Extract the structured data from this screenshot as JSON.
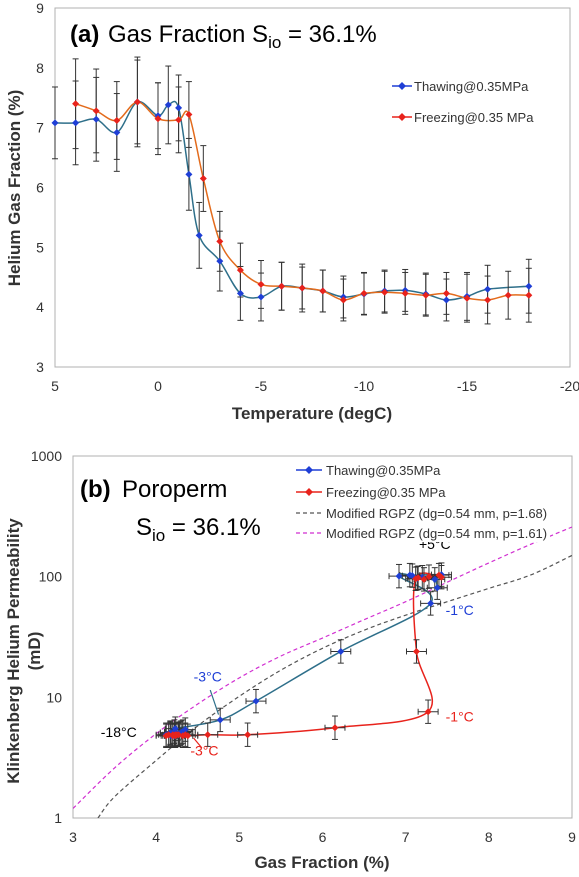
{
  "colors": {
    "thawing": "#1f3fd6",
    "freezing": "#e8231c",
    "thawing_line": "#2e6f8a",
    "freezing_line": "#e36b1c",
    "rgpz_168": "#555555",
    "rgpz_161": "#d12fd1",
    "errorbar": "#333333"
  },
  "chart_data": [
    {
      "panel": "a",
      "type": "line",
      "title_prefix": "(a)",
      "title_main": "Gas Fraction S",
      "title_sub": "io",
      "title_suffix": " = 36.1%",
      "xlabel": "Temperature (degC)",
      "ylabel": "Helium Gas Fraction (%)",
      "xlim": [
        5,
        -20
      ],
      "ylim": [
        3,
        9
      ],
      "xticks": [
        5,
        0,
        -5,
        -10,
        -15,
        -20
      ],
      "xtick_labels": [
        "5",
        "0",
        "-5",
        "-10",
        "-15",
        "-20"
      ],
      "yticks": [
        3,
        4,
        5,
        6,
        7,
        8,
        9
      ],
      "ytick_labels": [
        "3",
        "4",
        "5",
        "6",
        "7",
        "8",
        "9"
      ],
      "grid": "none",
      "legend_placement": "top-right",
      "series": [
        {
          "name": "Thawing@0.35MPa",
          "marker": "diamond",
          "x": [
            5,
            4,
            3,
            2,
            1,
            0,
            -0.5,
            -1,
            -1.5,
            -2,
            -3,
            -4,
            -5,
            -6,
            -7,
            -8,
            -9,
            -10,
            -11,
            -12,
            -13,
            -14,
            -15,
            -16,
            -18
          ],
          "y": [
            7.08,
            7.08,
            7.14,
            6.92,
            7.43,
            7.2,
            7.38,
            7.33,
            6.22,
            5.2,
            4.77,
            4.23,
            4.17,
            4.35,
            4.32,
            4.27,
            4.17,
            4.22,
            4.27,
            4.28,
            4.22,
            4.12,
            4.18,
            4.3,
            4.35
          ],
          "err": [
            0.6,
            0.7,
            0.7,
            0.65,
            0.7,
            0.55,
            0.65,
            0.55,
            0.6,
            0.55,
            0.5,
            0.45,
            0.4,
            0.4,
            0.4,
            0.35,
            0.35,
            0.35,
            0.35,
            0.35,
            0.35,
            0.35,
            0.4,
            0.4,
            0.45
          ]
        },
        {
          "name": "Freezing@0.35 MPa",
          "marker": "diamond",
          "x": [
            4,
            3,
            2,
            1,
            0,
            -1,
            -1.5,
            -2.2,
            -3,
            -4,
            -5,
            -6,
            -7,
            -8,
            -9,
            -10,
            -11,
            -12,
            -13,
            -14,
            -15,
            -16,
            -17,
            -18
          ],
          "y": [
            7.4,
            7.28,
            7.12,
            7.43,
            7.15,
            7.13,
            7.22,
            6.15,
            5.1,
            4.62,
            4.38,
            4.35,
            4.32,
            4.27,
            4.12,
            4.23,
            4.25,
            4.23,
            4.2,
            4.23,
            4.15,
            4.12,
            4.2,
            4.2
          ],
          "err": [
            0.75,
            0.7,
            0.65,
            0.75,
            0.6,
            0.55,
            0.55,
            0.55,
            0.5,
            0.45,
            0.4,
            0.4,
            0.35,
            0.35,
            0.35,
            0.35,
            0.35,
            0.35,
            0.35,
            0.35,
            0.4,
            0.4,
            0.4,
            0.45
          ]
        }
      ]
    },
    {
      "panel": "b",
      "type": "scatter",
      "title_prefix": "(b)",
      "title_main": "Poroperm",
      "subtitle_main": "S",
      "subtitle_sub": "io",
      "subtitle_suffix": " = 36.1%",
      "xlabel": "Gas Fraction (%)",
      "ylabel_line1": "Klinkenberg Helium Permeability",
      "ylabel_line2": "(mD)",
      "xlim": [
        3,
        9
      ],
      "ylim": [
        1,
        1000
      ],
      "yscale": "log",
      "xticks": [
        3,
        4,
        5,
        6,
        7,
        8,
        9
      ],
      "xtick_labels": [
        "3",
        "4",
        "5",
        "6",
        "7",
        "8",
        "9"
      ],
      "yticks": [
        1,
        10,
        100,
        1000
      ],
      "ytick_labels": [
        "1",
        "10",
        "100",
        "1000"
      ],
      "grid": "none",
      "legend_placement": "top-right",
      "series": [
        {
          "name": "Thawing@0.35MPa",
          "marker": "diamond",
          "x": [
            7.38,
            7.35,
            7.2,
            7.08,
            7.43,
            7.14,
            7.05,
            6.92,
            7.3,
            6.22,
            5.2,
            4.77,
            4.23,
            4.17,
            4.35,
            4.32,
            4.27,
            4.17,
            4.22,
            4.27,
            4.28,
            4.22,
            4.12,
            4.18,
            4.3
          ],
          "y": [
            81,
            95,
            99,
            102,
            104,
            97,
            103,
            101,
            60,
            24,
            9.3,
            6.5,
            5.5,
            5.1,
            5.4,
            5.2,
            5.0,
            5.0,
            4.8,
            4.9,
            5.0,
            5.2,
            4.9,
            4.8,
            5.1
          ]
        },
        {
          "name": "Freezing@0.35 MPa",
          "marker": "diamond",
          "x": [
            7.15,
            7.22,
            7.28,
            7.4,
            7.43,
            7.12,
            7.13,
            7.27,
            6.15,
            5.1,
            4.62,
            4.38,
            4.35,
            4.32,
            4.27,
            4.23,
            4.2,
            4.15,
            4.12,
            4.2,
            4.25,
            4.23
          ],
          "y": [
            98,
            95,
            100,
            103,
            99,
            96,
            24,
            7.6,
            5.6,
            4.9,
            4.9,
            4.8,
            4.9,
            4.8,
            4.9,
            4.8,
            4.9,
            4.9,
            4.8,
            4.8,
            4.9,
            4.9
          ]
        },
        {
          "name": "Modified RGPZ (dg=0.54 mm, p=1.68)",
          "style": "dashed",
          "x": [
            3.3,
            3.5,
            4,
            4.5,
            5,
            5.5,
            6,
            6.5,
            7,
            7.5,
            8,
            8.5,
            9
          ],
          "y": [
            1.0,
            1.5,
            3.0,
            5.8,
            10.2,
            16.8,
            25.5,
            36,
            48,
            62,
            80,
            103,
            150
          ]
        },
        {
          "name": "Modified RGPZ (dg=0.54 mm, p=1.61)",
          "style": "dashed",
          "x": [
            3.0,
            3.5,
            4,
            4.5,
            5,
            5.5,
            6,
            6.5,
            7,
            7.5,
            8,
            8.5,
            9
          ],
          "y": [
            1.2,
            2.6,
            5.0,
            8.8,
            14.5,
            22,
            31,
            44,
            62,
            90,
            130,
            185,
            258
          ]
        }
      ],
      "annotations": [
        {
          "text": "+5°C",
          "x": 7.35,
          "y": 170,
          "color": "#000000"
        },
        {
          "text": "-1°C",
          "x": 7.65,
          "y": 48,
          "color": "#1f3fd6"
        },
        {
          "text": "-3°C",
          "x": 4.62,
          "y": 13.5,
          "color": "#1f3fd6"
        },
        {
          "text": "-18°C",
          "x": 3.55,
          "y": 4.7,
          "color": "#000000"
        },
        {
          "text": "-3°C",
          "x": 4.58,
          "y": 3.3,
          "color": "#e8231c"
        },
        {
          "text": "-1°C",
          "x": 7.65,
          "y": 6.3,
          "color": "#e8231c"
        }
      ]
    }
  ]
}
